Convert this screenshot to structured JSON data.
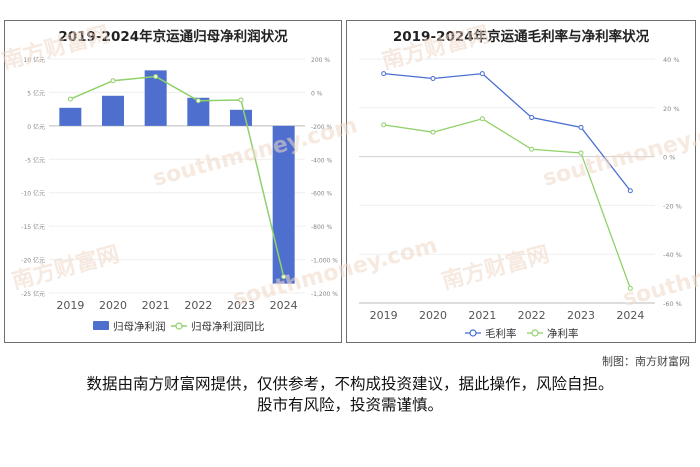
{
  "credit": "制图：南方财富网",
  "disclaimer": {
    "line1": "数据由南方财富网提供，仅供参考，不构成投资建议，据此操作，风险自担。",
    "line2": "股市有风险，投资需谨慎。"
  },
  "watermark": {
    "cn": "南方财富网",
    "en": "southmoney.com"
  },
  "chart_data": [
    {
      "type": "bar",
      "title": "2019-2024年京运通归母净利润状况",
      "categories": [
        "2019",
        "2020",
        "2021",
        "2022",
        "2023",
        "2024"
      ],
      "series": [
        {
          "name": "归母净利润",
          "kind": "bar",
          "axis": "left",
          "color": "#4f6fce",
          "values": [
            2.7,
            4.5,
            8.3,
            4.2,
            2.4,
            -23.6
          ]
        },
        {
          "name": "归母净利润同比",
          "kind": "line",
          "axis": "right",
          "color": "#8fd16a",
          "values": [
            -40,
            70,
            95,
            -50,
            -45,
            -1103
          ]
        }
      ],
      "ylim_left": [
        -25,
        10
      ],
      "yticks_left": [
        "10 亿元",
        "5 亿元",
        "0 亿元",
        "-5 亿元",
        "-10 亿元",
        "-15 亿元",
        "-20 亿元",
        "-25 亿元"
      ],
      "ylim_right": [
        -1200,
        200
      ],
      "yticks_right": [
        "200 %",
        "0 %",
        "-200 %",
        "-400 %",
        "-600 %",
        "-800 %",
        "-1,000 %",
        "-1,200 %"
      ],
      "legend": "bottom"
    },
    {
      "type": "line",
      "title": "2019-2024年京运通毛利率与净利率状况",
      "categories": [
        "2019",
        "2020",
        "2021",
        "2022",
        "2023",
        "2024"
      ],
      "series": [
        {
          "name": "毛利率",
          "color": "#4a6fd1",
          "values": [
            34,
            32,
            34,
            16,
            12,
            -14
          ]
        },
        {
          "name": "净利率",
          "color": "#8fd16a",
          "values": [
            13,
            10,
            15.5,
            3,
            1.5,
            -54
          ]
        }
      ],
      "ylim": [
        -60,
        40
      ],
      "yticks": [
        "40 %",
        "20 %",
        "0 %",
        "-20 %",
        "-40 %",
        "-60 %"
      ],
      "legend": "bottom"
    }
  ]
}
